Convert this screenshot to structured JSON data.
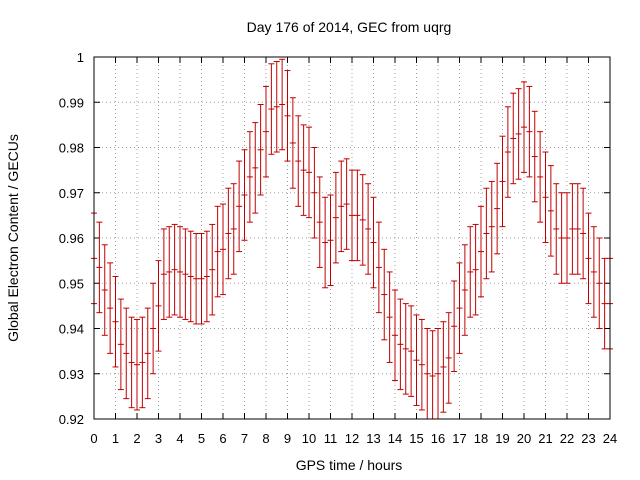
{
  "chart_data": {
    "type": "scatter",
    "title": "Day 176 of 2014, GEC from uqrg",
    "xlabel": "GPS time / hours",
    "ylabel": "Global Electron Content / GECUs",
    "xlim": [
      0,
      24
    ],
    "ylim": [
      0.92,
      1.0
    ],
    "x_ticks": [
      "0",
      "1",
      "2",
      "3",
      "4",
      "5",
      "6",
      "7",
      "8",
      "9",
      "10",
      "11",
      "12",
      "13",
      "14",
      "15",
      "16",
      "17",
      "18",
      "19",
      "20",
      "21",
      "22",
      "23",
      "24"
    ],
    "y_ticks": [
      "0.92",
      "0.93",
      "0.94",
      "0.95",
      "0.96",
      "0.97",
      "0.98",
      "0.99",
      "1"
    ],
    "grid": true,
    "series": [
      {
        "color": "#c00000",
        "error": 0.01,
        "x": [
          0,
          0.25,
          0.5,
          0.75,
          1,
          1.25,
          1.5,
          1.75,
          2,
          2.25,
          2.5,
          2.75,
          3,
          3.25,
          3.5,
          3.75,
          4,
          4.25,
          4.5,
          4.75,
          5,
          5.25,
          5.5,
          5.75,
          6,
          6.25,
          6.5,
          6.75,
          7,
          7.25,
          7.5,
          7.75,
          8,
          8.25,
          8.5,
          8.75,
          9,
          9.25,
          9.5,
          9.75,
          10,
          10.25,
          10.5,
          10.75,
          11,
          11.25,
          11.5,
          11.75,
          12,
          12.25,
          12.5,
          12.75,
          13,
          13.25,
          13.5,
          13.75,
          14,
          14.25,
          14.5,
          14.75,
          15,
          15.25,
          15.5,
          15.75,
          16,
          16.25,
          16.5,
          16.75,
          17,
          17.25,
          17.5,
          17.75,
          18,
          18.25,
          18.5,
          18.75,
          19,
          19.25,
          19.5,
          19.75,
          20,
          20.25,
          20.5,
          20.75,
          21,
          21.25,
          21.5,
          21.75,
          22,
          22.25,
          22.5,
          22.75,
          23,
          23.25,
          23.5,
          23.75,
          24
        ],
        "y": [
          0.9555,
          0.9535,
          0.9485,
          0.9445,
          0.9415,
          0.9365,
          0.9345,
          0.9325,
          0.932,
          0.9325,
          0.9345,
          0.94,
          0.945,
          0.952,
          0.9525,
          0.953,
          0.9525,
          0.952,
          0.9515,
          0.951,
          0.951,
          0.9515,
          0.953,
          0.957,
          0.9575,
          0.961,
          0.962,
          0.967,
          0.9695,
          0.9735,
          0.9755,
          0.9795,
          0.9835,
          0.9885,
          0.989,
          0.9895,
          0.987,
          0.981,
          0.977,
          0.975,
          0.9745,
          0.97,
          0.9635,
          0.959,
          0.9595,
          0.9645,
          0.967,
          0.9675,
          0.965,
          0.965,
          0.964,
          0.962,
          0.959,
          0.9535,
          0.9475,
          0.9425,
          0.9385,
          0.9365,
          0.9355,
          0.935,
          0.933,
          0.932,
          0.93,
          0.9295,
          0.93,
          0.9315,
          0.9335,
          0.9405,
          0.9445,
          0.9485,
          0.9525,
          0.953,
          0.957,
          0.961,
          0.9625,
          0.9665,
          0.9725,
          0.979,
          0.982,
          0.983,
          0.9845,
          0.9835,
          0.978,
          0.9735,
          0.969,
          0.966,
          0.962,
          0.96,
          0.96,
          0.962,
          0.962,
          0.961,
          0.9555,
          0.9525,
          0.95,
          0.9455,
          0.9455
        ]
      }
    ]
  }
}
